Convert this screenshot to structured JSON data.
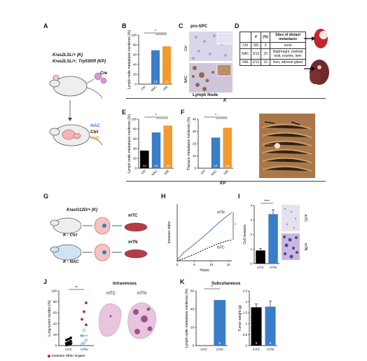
{
  "panels": {
    "A": {
      "letter": "A",
      "genotype_K": "Kras2LSL/+ (K)",
      "genotype_KP": "Kras2LSL/+; Trp53fl/fl (KP)",
      "cre": "Cre",
      "groups": [
        "NAC",
        "Ctrl",
        "VitE"
      ]
    },
    "B": {
      "letter": "B"
    },
    "C": {
      "letter": "C",
      "title": "pro-SPC",
      "row1": "Ctrl",
      "row2": "NAC",
      "footer": "Lymph Node"
    },
    "D": {
      "letter": "D",
      "headers": [
        "",
        "#",
        "(%)",
        "Sites of distant metastasis"
      ],
      "rows": [
        [
          "Ctrl",
          "0/9",
          "0",
          "none"
        ],
        [
          "NAC",
          "3/13",
          "23",
          "diaphragm, parietal wall, ovaries, liver"
        ],
        [
          "VitE",
          "2/13",
          "15",
          "liver, adrenal gland"
        ]
      ]
    },
    "E": {
      "letter": "E"
    },
    "F": {
      "letter": "F"
    },
    "G": {
      "letter": "G",
      "kras": "KrasG12D/+ (K)",
      "k_ctrl": "K - Ctrl",
      "k_nac": "K - NAC",
      "mtc": "mTC",
      "mtn": "mTN"
    },
    "H": {
      "letter": "H"
    },
    "I": {
      "letter": "I",
      "img_mtc": "mTC",
      "img_mtn": "mTN"
    },
    "J": {
      "letter": "J",
      "title": "Intravenous",
      "img_mtc": "mTC",
      "img_mtn": "mTN",
      "legend": "invasion other organs"
    },
    "K": {
      "letter": "K",
      "title": "Subcutaneous"
    }
  },
  "dividers": {
    "K": "K",
    "KP": "KP"
  },
  "colors": {
    "ctrl": "#000000",
    "nac": "#3a7dc9",
    "vite": "#f29a2e",
    "he_pink": "#c77fb5",
    "ihc_brown": "#8a5a2b"
  },
  "chart_data": [
    {
      "id": "B",
      "type": "bar",
      "categories": [
        "Ctrl",
        "NAC",
        "VitE"
      ],
      "values": [
        0,
        69,
        77
      ],
      "n": [
        "9",
        "13",
        "13"
      ],
      "ylabel": "Lymph node metastasis incidence (%)",
      "ylim": [
        0,
        100
      ],
      "yticks": [
        0,
        20,
        40,
        60,
        80,
        100
      ],
      "significance": "*"
    },
    {
      "id": "E",
      "type": "bar",
      "categories": [
        "Ctrl",
        "NAC",
        "VitE"
      ],
      "values": [
        36,
        73,
        87
      ],
      "n": [
        "14",
        "12",
        "15"
      ],
      "ylabel": "Lymph node metastasis incidence (%)",
      "ylim": [
        0,
        100
      ],
      "yticks": [
        0,
        20,
        40,
        60,
        80,
        100
      ],
      "significance": "*"
    },
    {
      "id": "F",
      "type": "bar",
      "categories": [
        "Ctrl",
        "NAC",
        "VitE"
      ],
      "values": [
        0,
        25,
        33
      ],
      "n": [
        "14",
        "12",
        "15"
      ],
      "ylabel": "Thoracic metastasis incidence (%)",
      "ylim": [
        0,
        40
      ],
      "yticks": [
        0,
        10,
        20,
        30,
        40
      ],
      "significance": "*"
    },
    {
      "id": "H",
      "type": "line",
      "xlabel": "Hours",
      "ylabel": "Invasion index",
      "xlim": [
        0,
        16
      ],
      "ylim": [
        0,
        1
      ],
      "xticks": [
        0,
        5,
        10,
        15
      ],
      "series": [
        {
          "name": "mTN",
          "style": "solid",
          "points": [
            [
              0,
              0.02
            ],
            [
              2,
              0.15
            ],
            [
              4,
              0.24
            ],
            [
              6,
              0.34
            ],
            [
              8,
              0.44
            ],
            [
              10,
              0.55
            ],
            [
              12,
              0.66
            ],
            [
              14,
              0.76
            ],
            [
              16,
              0.85
            ]
          ]
        },
        {
          "name": "mTC",
          "style": "dashed",
          "points": [
            [
              0,
              0
            ],
            [
              2,
              0.04
            ],
            [
              4,
              0.09
            ],
            [
              6,
              0.14
            ],
            [
              8,
              0.2
            ],
            [
              10,
              0.25
            ],
            [
              12,
              0.3
            ],
            [
              14,
              0.34
            ],
            [
              16,
              0.37
            ]
          ]
        }
      ],
      "significance": "**"
    },
    {
      "id": "I",
      "type": "bar",
      "categories": [
        "mTC",
        "mTN"
      ],
      "values": [
        0.9,
        3.4
      ],
      "errors": [
        0.15,
        0.3
      ],
      "ylabel": "Cell invasion",
      "ylim": [
        0,
        4
      ],
      "yticks": [
        0,
        1,
        2,
        3,
        4
      ],
      "significance": "****"
    },
    {
      "id": "J",
      "type": "scatter",
      "categories": [
        "mTC",
        "mTN"
      ],
      "ylabel": "Lung tumor burden (%)",
      "ylim": [
        0,
        100
      ],
      "yticks": [
        0,
        20,
        40,
        60,
        80,
        100
      ],
      "points": {
        "mTC": [
          [
            0,
            1
          ],
          [
            0,
            2
          ],
          [
            0,
            3
          ],
          [
            0,
            4
          ],
          [
            0,
            6
          ],
          [
            0,
            8
          ],
          [
            0,
            10
          ],
          [
            0,
            12
          ],
          [
            0,
            14
          ]
        ],
        "mTN": [
          [
            1,
            2
          ],
          [
            1,
            5
          ],
          [
            1,
            10
          ],
          [
            1,
            18
          ],
          [
            1,
            28
          ],
          [
            1,
            38
          ],
          [
            1,
            48
          ],
          [
            1,
            62
          ],
          [
            1,
            78
          ]
        ]
      },
      "medians": [
        5,
        18
      ],
      "significance": "**"
    },
    {
      "id": "K1",
      "type": "bar",
      "categories": [
        "mTC",
        "mTN"
      ],
      "values": [
        0,
        50
      ],
      "n": [
        "6",
        "6"
      ],
      "ylabel": "Lymph node metastasis incidence (%)",
      "ylim": [
        0,
        60
      ],
      "yticks": [
        0,
        20,
        40,
        60
      ],
      "significance": "*"
    },
    {
      "id": "K2",
      "type": "bar",
      "categories": [
        "mTC",
        "mTN"
      ],
      "values": [
        1.75,
        1.78
      ],
      "errors": [
        0.15,
        0.25
      ],
      "n": [
        "6",
        "6"
      ],
      "ylabel": "Tumor weight (g)",
      "ylim": [
        0,
        2.5
      ],
      "yticks": [
        0,
        0.5,
        1,
        1.5,
        2,
        2.5
      ]
    }
  ]
}
